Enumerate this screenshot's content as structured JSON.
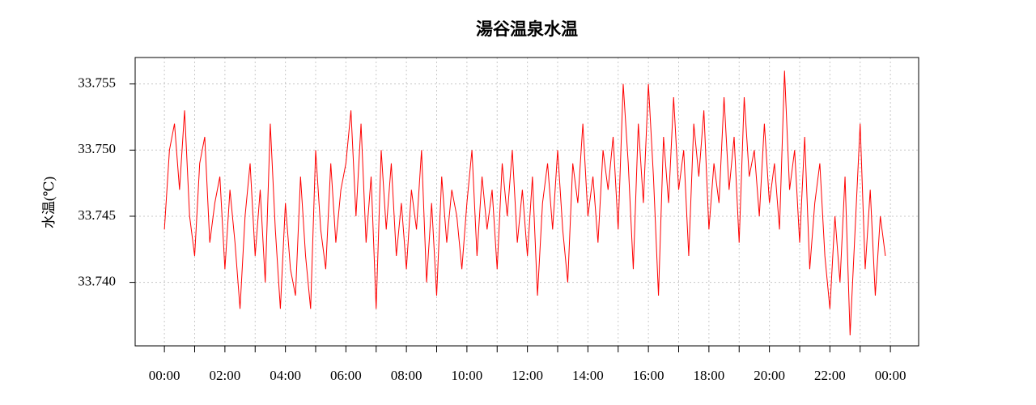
{
  "chart_data": {
    "type": "line",
    "title": "湯谷温泉水温",
    "y_label": "水温(℃)",
    "color": "#ff0000",
    "grid": true,
    "x": [
      0,
      10,
      20,
      30,
      40,
      50,
      60,
      70,
      80,
      90,
      100,
      110,
      120,
      130,
      140,
      150,
      160,
      170,
      180,
      190,
      200,
      210,
      220,
      230,
      240,
      250,
      260,
      270,
      280,
      290,
      300,
      310,
      320,
      330,
      340,
      350,
      360,
      370,
      380,
      390,
      400,
      410,
      420,
      430,
      440,
      450,
      460,
      470,
      480,
      490,
      500,
      510,
      520,
      530,
      540,
      550,
      560,
      570,
      580,
      590,
      600,
      610,
      620,
      630,
      640,
      650,
      660,
      670,
      680,
      690,
      700,
      710,
      720,
      730,
      740,
      750,
      760,
      770,
      780,
      790,
      800,
      810,
      820,
      830,
      840,
      850,
      860,
      870,
      880,
      890,
      900,
      910,
      920,
      930,
      940,
      950,
      960,
      970,
      980,
      990,
      1000,
      1010,
      1020,
      1030,
      1040,
      1050,
      1060,
      1070,
      1080,
      1090,
      1100,
      1110,
      1120,
      1130,
      1140,
      1150,
      1160,
      1170,
      1180,
      1190,
      1200,
      1210,
      1220,
      1230,
      1240,
      1250,
      1260,
      1270,
      1280,
      1290,
      1300,
      1310,
      1320,
      1330,
      1340,
      1350,
      1360,
      1370,
      1380,
      1390,
      1400,
      1410,
      1420,
      1430
    ],
    "values": [
      33.744,
      33.75,
      33.752,
      33.747,
      33.753,
      33.745,
      33.742,
      33.749,
      33.751,
      33.743,
      33.746,
      33.748,
      33.741,
      33.747,
      33.743,
      33.738,
      33.745,
      33.749,
      33.742,
      33.747,
      33.74,
      33.752,
      33.744,
      33.738,
      33.746,
      33.741,
      33.739,
      33.748,
      33.742,
      33.738,
      33.75,
      33.744,
      33.741,
      33.749,
      33.743,
      33.747,
      33.749,
      33.753,
      33.745,
      33.752,
      33.743,
      33.748,
      33.738,
      33.75,
      33.744,
      33.749,
      33.742,
      33.746,
      33.741,
      33.747,
      33.744,
      33.75,
      33.74,
      33.746,
      33.739,
      33.748,
      33.743,
      33.747,
      33.745,
      33.741,
      33.746,
      33.75,
      33.742,
      33.748,
      33.744,
      33.747,
      33.741,
      33.749,
      33.745,
      33.75,
      33.743,
      33.747,
      33.742,
      33.748,
      33.739,
      33.746,
      33.749,
      33.744,
      33.75,
      33.744,
      33.74,
      33.749,
      33.746,
      33.752,
      33.745,
      33.748,
      33.743,
      33.75,
      33.747,
      33.751,
      33.744,
      33.755,
      33.749,
      33.741,
      33.752,
      33.746,
      33.755,
      33.748,
      33.739,
      33.751,
      33.746,
      33.754,
      33.747,
      33.75,
      33.742,
      33.752,
      33.748,
      33.753,
      33.744,
      33.749,
      33.746,
      33.754,
      33.747,
      33.751,
      33.743,
      33.754,
      33.748,
      33.75,
      33.745,
      33.752,
      33.746,
      33.749,
      33.744,
      33.756,
      33.747,
      33.75,
      33.743,
      33.751,
      33.741,
      33.746,
      33.749,
      33.742,
      33.738,
      33.745,
      33.74,
      33.748,
      33.736,
      33.744,
      33.752,
      33.741,
      33.747,
      33.739,
      33.745,
      33.742
    ],
    "xlim": [
      -58,
      1496
    ],
    "xticks": [
      {
        "value": 0,
        "label": "00:00"
      },
      {
        "value": 120,
        "label": "02:00"
      },
      {
        "value": 240,
        "label": "04:00"
      },
      {
        "value": 360,
        "label": "06:00"
      },
      {
        "value": 480,
        "label": "08:00"
      },
      {
        "value": 600,
        "label": "10:00"
      },
      {
        "value": 720,
        "label": "12:00"
      },
      {
        "value": 840,
        "label": "14:00"
      },
      {
        "value": 960,
        "label": "16:00"
      },
      {
        "value": 1080,
        "label": "18:00"
      },
      {
        "value": 1200,
        "label": "20:00"
      },
      {
        "value": 1320,
        "label": "22:00"
      },
      {
        "value": 1440,
        "label": "00:00"
      }
    ],
    "xminor_ticks": [
      60,
      180,
      300,
      420,
      540,
      660,
      780,
      900,
      1020,
      1140,
      1260,
      1380
    ],
    "ylim": [
      33.7352,
      33.757
    ],
    "yticks": [
      {
        "value": 33.74,
        "label": "33.740"
      },
      33.745,
      {
        "value": 33.75,
        "label": "33.750"
      },
      33.755
    ]
  }
}
